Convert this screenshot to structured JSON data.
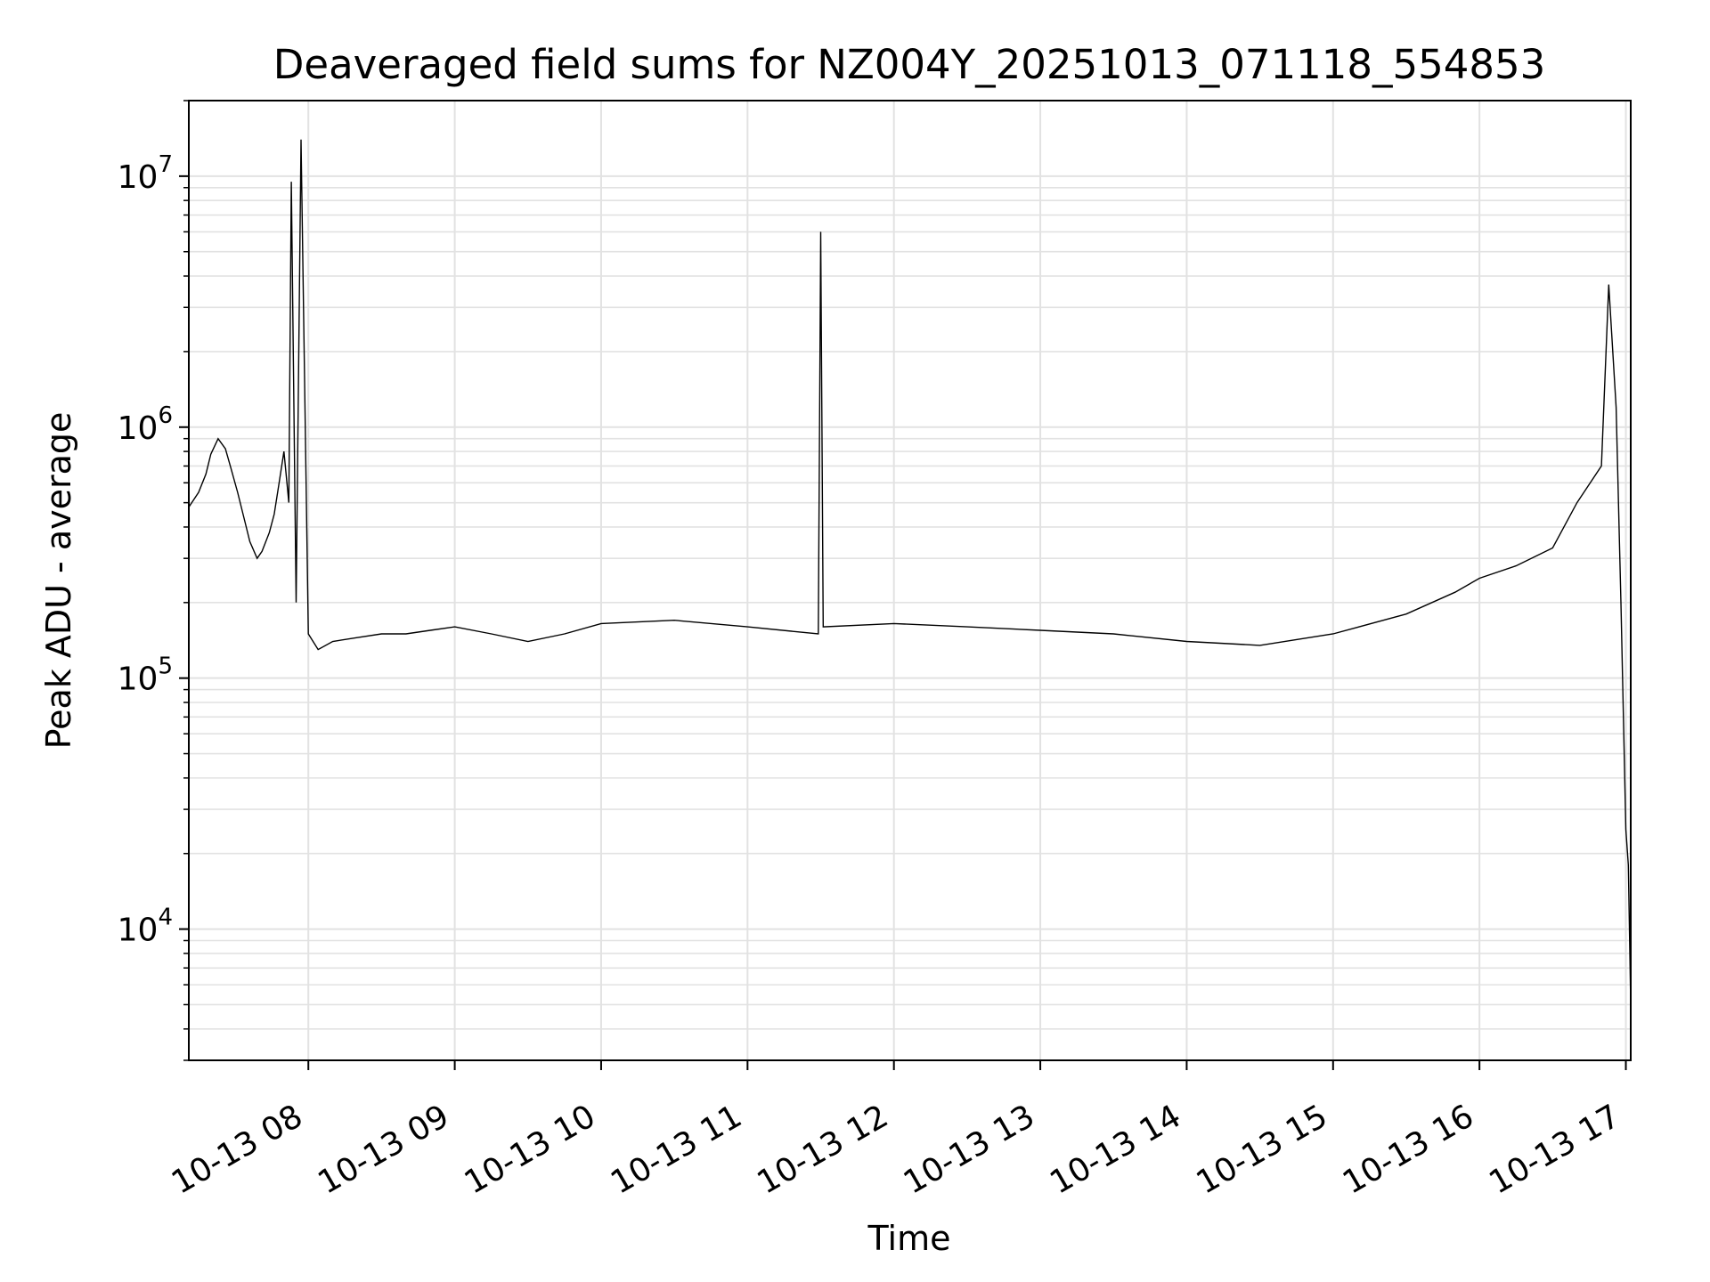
{
  "chart_data": {
    "type": "line",
    "title": "Deaveraged field sums for NZ004Y_20251013_071118_554853",
    "xlabel": "Time",
    "ylabel": "Peak ADU - average",
    "yscale": "log",
    "xlim": [
      "2025-10-13 07:11",
      "2025-10-13 17:02"
    ],
    "ylim": [
      3000,
      20000000
    ],
    "grid": true,
    "x_ticks": [
      {
        "value": "2025-10-13 08:00",
        "label": "10-13 08"
      },
      {
        "value": "2025-10-13 09:00",
        "label": "10-13 09"
      },
      {
        "value": "2025-10-13 10:00",
        "label": "10-13 10"
      },
      {
        "value": "2025-10-13 11:00",
        "label": "10-13 11"
      },
      {
        "value": "2025-10-13 12:00",
        "label": "10-13 12"
      },
      {
        "value": "2025-10-13 13:00",
        "label": "10-13 13"
      },
      {
        "value": "2025-10-13 14:00",
        "label": "10-13 14"
      },
      {
        "value": "2025-10-13 15:00",
        "label": "10-13 15"
      },
      {
        "value": "2025-10-13 16:00",
        "label": "10-13 16"
      },
      {
        "value": "2025-10-13 17:00",
        "label": "10-13 17"
      }
    ],
    "y_ticks": [
      {
        "value": 10000,
        "base": "10",
        "exp": "4"
      },
      {
        "value": 100000,
        "base": "10",
        "exp": "5"
      },
      {
        "value": 1000000,
        "base": "10",
        "exp": "6"
      },
      {
        "value": 10000000,
        "base": "10",
        "exp": "7"
      }
    ],
    "series_color": "#000000",
    "series": [
      {
        "x": [
          "2025-10-13 07:11",
          "2025-10-13 07:15",
          "2025-10-13 07:18",
          "2025-10-13 07:20",
          "2025-10-13 07:23",
          "2025-10-13 07:26",
          "2025-10-13 07:28",
          "2025-10-13 07:31",
          "2025-10-13 07:34",
          "2025-10-13 07:36",
          "2025-10-13 07:39",
          "2025-10-13 07:41",
          "2025-10-13 07:44",
          "2025-10-13 07:46",
          "2025-10-13 07:48",
          "2025-10-13 07:50",
          "2025-10-13 07:52",
          "2025-10-13 07:53",
          "2025-10-13 07:55",
          "2025-10-13 07:57",
          "2025-10-13 08:00",
          "2025-10-13 08:04",
          "2025-10-13 08:10",
          "2025-10-13 08:20",
          "2025-10-13 08:30",
          "2025-10-13 08:40",
          "2025-10-13 08:50",
          "2025-10-13 09:00",
          "2025-10-13 09:15",
          "2025-10-13 09:30",
          "2025-10-13 09:45",
          "2025-10-13 10:00",
          "2025-10-13 10:30",
          "2025-10-13 11:00",
          "2025-10-13 11:29",
          "2025-10-13 11:30",
          "2025-10-13 11:31",
          "2025-10-13 12:00",
          "2025-10-13 12:30",
          "2025-10-13 13:00",
          "2025-10-13 13:30",
          "2025-10-13 14:00",
          "2025-10-13 14:30",
          "2025-10-13 15:00",
          "2025-10-13 15:30",
          "2025-10-13 15:50",
          "2025-10-13 16:00",
          "2025-10-13 16:15",
          "2025-10-13 16:30",
          "2025-10-13 16:40",
          "2025-10-13 16:50",
          "2025-10-13 16:53",
          "2025-10-13 16:56",
          "2025-10-13 16:58",
          "2025-10-13 17:00",
          "2025-10-13 17:01",
          "2025-10-13 17:02"
        ],
        "y": [
          480000,
          550000,
          650000,
          780000,
          900000,
          820000,
          700000,
          550000,
          420000,
          350000,
          300000,
          320000,
          380000,
          450000,
          600000,
          800000,
          500000,
          9500000,
          200000,
          14000000,
          150000,
          130000,
          140000,
          145000,
          150000,
          150000,
          155000,
          160000,
          150000,
          140000,
          150000,
          165000,
          170000,
          160000,
          150000,
          6000000,
          160000,
          165000,
          160000,
          155000,
          150000,
          140000,
          135000,
          150000,
          180000,
          220000,
          250000,
          280000,
          330000,
          500000,
          700000,
          3700000,
          1200000,
          200000,
          25000,
          18000,
          5000
        ]
      }
    ]
  }
}
